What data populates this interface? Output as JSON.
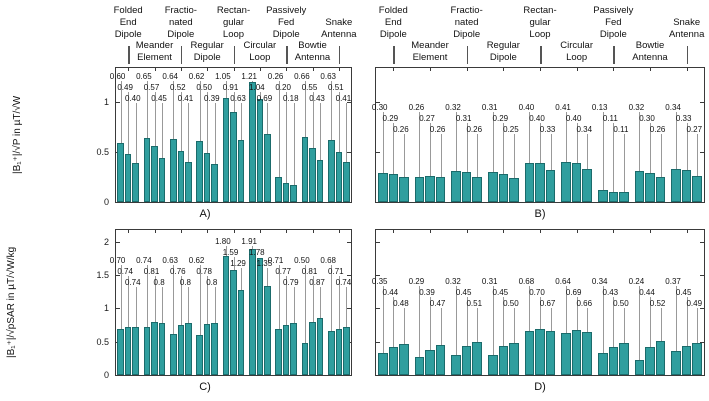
{
  "colors": {
    "bar_fill": "#2f9e9e",
    "bar_edge": "#1b6b6b",
    "leader_line": "#999999",
    "axis": "#3a3a3a"
  },
  "header": {
    "row1": [
      [
        "Folded",
        "End",
        "Dipole"
      ],
      [
        "Fractio-",
        "nated",
        "Dipole"
      ],
      [
        "Rectan-",
        "gular",
        "Loop"
      ],
      [
        "Passively",
        "Fed",
        "Dipole"
      ],
      [
        "Snake",
        "Antenna"
      ]
    ],
    "row2": [
      [
        "Meander",
        "Element"
      ],
      [
        "Regular",
        "Dipole"
      ],
      [
        "Circular",
        "Loop"
      ],
      [
        "Bowtie",
        "Antenna"
      ]
    ]
  },
  "categories": [
    "Folded End Dipole",
    "Meander Element",
    "Fractionated Dipole",
    "Regular Dipole",
    "Rectangular Loop",
    "Circular Loop",
    "Passively Fed Dipole",
    "Bowtie Antenna",
    "Snake Antenna"
  ],
  "chart_data": [
    {
      "type": "bar",
      "panel": "A)",
      "ylabel": "|B₁⁺|/√P in µT/√W",
      "ylim": [
        0,
        1.36
      ],
      "yticks": [
        0,
        0.5,
        1
      ],
      "ytick_labels": [
        "0",
        "0.5",
        "1"
      ],
      "ytick_labels_visible": true,
      "grid": false,
      "bars_per_group": 3,
      "values": [
        [
          0.6,
          0.49,
          0.4
        ],
        [
          0.65,
          0.57,
          0.45
        ],
        [
          0.64,
          0.52,
          0.41
        ],
        [
          0.62,
          0.5,
          0.39
        ],
        [
          1.05,
          0.91,
          0.63
        ],
        [
          1.21,
          1.04,
          0.69
        ],
        [
          0.26,
          0.2,
          0.18
        ],
        [
          0.66,
          0.55,
          0.43
        ],
        [
          0.63,
          0.51,
          0.41
        ]
      ],
      "labels": [
        [
          "0.60",
          "0.49",
          "0.40"
        ],
        [
          "0.65",
          "0.57",
          "0.45"
        ],
        [
          "0.64",
          "0.52",
          "0.41"
        ],
        [
          "0.62",
          "0.50",
          "0.39"
        ],
        [
          "1.05",
          "0.91",
          "0.63"
        ],
        [
          "1.21",
          "1.04",
          "0.69"
        ],
        [
          "0.26",
          "0.20",
          "0.18"
        ],
        [
          "0.66",
          "0.55",
          "0.43"
        ],
        [
          "0.63",
          "0.51",
          "0.41"
        ]
      ]
    },
    {
      "type": "bar",
      "panel": "B)",
      "ylabel": "",
      "ylim": [
        0,
        1.36
      ],
      "yticks": [
        0,
        0.5,
        1
      ],
      "ytick_labels": [],
      "ytick_labels_visible": false,
      "grid": false,
      "bars_per_group": 3,
      "values": [
        [
          0.3,
          0.29,
          0.26
        ],
        [
          0.26,
          0.27,
          0.26
        ],
        [
          0.32,
          0.31,
          0.26
        ],
        [
          0.31,
          0.29,
          0.25
        ],
        [
          0.4,
          0.4,
          0.33
        ],
        [
          0.41,
          0.4,
          0.34
        ],
        [
          0.13,
          0.11,
          0.11
        ],
        [
          0.32,
          0.3,
          0.26
        ],
        [
          0.34,
          0.33,
          0.27
        ]
      ],
      "labels": [
        [
          "0.30",
          "0.29",
          "0.26"
        ],
        [
          "0.26",
          "0.27",
          "0.26"
        ],
        [
          "0.32",
          "0.31",
          "0.26"
        ],
        [
          "0.31",
          "0.29",
          "0.25"
        ],
        [
          "0.40",
          "0.40",
          "0.33"
        ],
        [
          "0.41",
          "0.40",
          "0.34"
        ],
        [
          "0.13",
          "0.11",
          "0.11"
        ],
        [
          "0.32",
          "0.30",
          "0.26"
        ],
        [
          "0.34",
          "0.33",
          "0.27"
        ]
      ]
    },
    {
      "type": "bar",
      "panel": "C)",
      "ylabel": "|B₁⁺|/√pSAR in µT/√W/kg",
      "ylim": [
        0,
        2.21
      ],
      "yticks": [
        0,
        0.5,
        1,
        1.5,
        2
      ],
      "ytick_labels": [
        "0",
        "0.5",
        "1",
        "1.5",
        "2"
      ],
      "ytick_labels_visible": true,
      "grid": false,
      "bars_per_group": 3,
      "values": [
        [
          0.7,
          0.74,
          0.74
        ],
        [
          0.74,
          0.81,
          0.8
        ],
        [
          0.63,
          0.76,
          0.8
        ],
        [
          0.62,
          0.78,
          0.8
        ],
        [
          1.8,
          1.59,
          1.29
        ],
        [
          1.91,
          1.78,
          1.35
        ],
        [
          0.71,
          0.77,
          0.79
        ],
        [
          0.5,
          0.81,
          0.87
        ],
        [
          0.68,
          0.71,
          0.74
        ]
      ],
      "labels": [
        [
          "0.70",
          "0.74",
          "0.74"
        ],
        [
          "0.74",
          "0.81",
          "0.8"
        ],
        [
          "0.63",
          "0.76",
          "0.8"
        ],
        [
          "0.62",
          "0.78",
          "0.8"
        ],
        [
          "1.80",
          "1.59",
          "1.29"
        ],
        [
          "1.91",
          "1.78",
          "1.35"
        ],
        [
          "0.71",
          "0.77",
          "0.79"
        ],
        [
          "0.50",
          "0.81",
          "0.87"
        ],
        [
          "0.68",
          "0.71",
          "0.74"
        ]
      ]
    },
    {
      "type": "bar",
      "panel": "D)",
      "ylabel": "",
      "ylim": [
        0,
        2.21
      ],
      "yticks": [
        0,
        0.5,
        1,
        1.5,
        2
      ],
      "ytick_labels": [],
      "ytick_labels_visible": false,
      "grid": false,
      "bars_per_group": 3,
      "values": [
        [
          0.35,
          0.44,
          0.48
        ],
        [
          0.29,
          0.39,
          0.47
        ],
        [
          0.32,
          0.45,
          0.51
        ],
        [
          0.31,
          0.45,
          0.5
        ],
        [
          0.68,
          0.7,
          0.67
        ],
        [
          0.64,
          0.69,
          0.66
        ],
        [
          0.34,
          0.43,
          0.5
        ],
        [
          0.24,
          0.44,
          0.52
        ],
        [
          0.37,
          0.45,
          0.49
        ]
      ],
      "labels": [
        [
          "0.35",
          "0.44",
          "0.48"
        ],
        [
          "0.29",
          "0.39",
          "0.47"
        ],
        [
          "0.32",
          "0.45",
          "0.51"
        ],
        [
          "0.31",
          "0.45",
          "0.50"
        ],
        [
          "0.68",
          "0.70",
          "0.67"
        ],
        [
          "0.64",
          "0.69",
          "0.66"
        ],
        [
          "0.34",
          "0.43",
          "0.50"
        ],
        [
          "0.24",
          "0.44",
          "0.52"
        ],
        [
          "0.37",
          "0.45",
          "0.49"
        ]
      ]
    }
  ]
}
